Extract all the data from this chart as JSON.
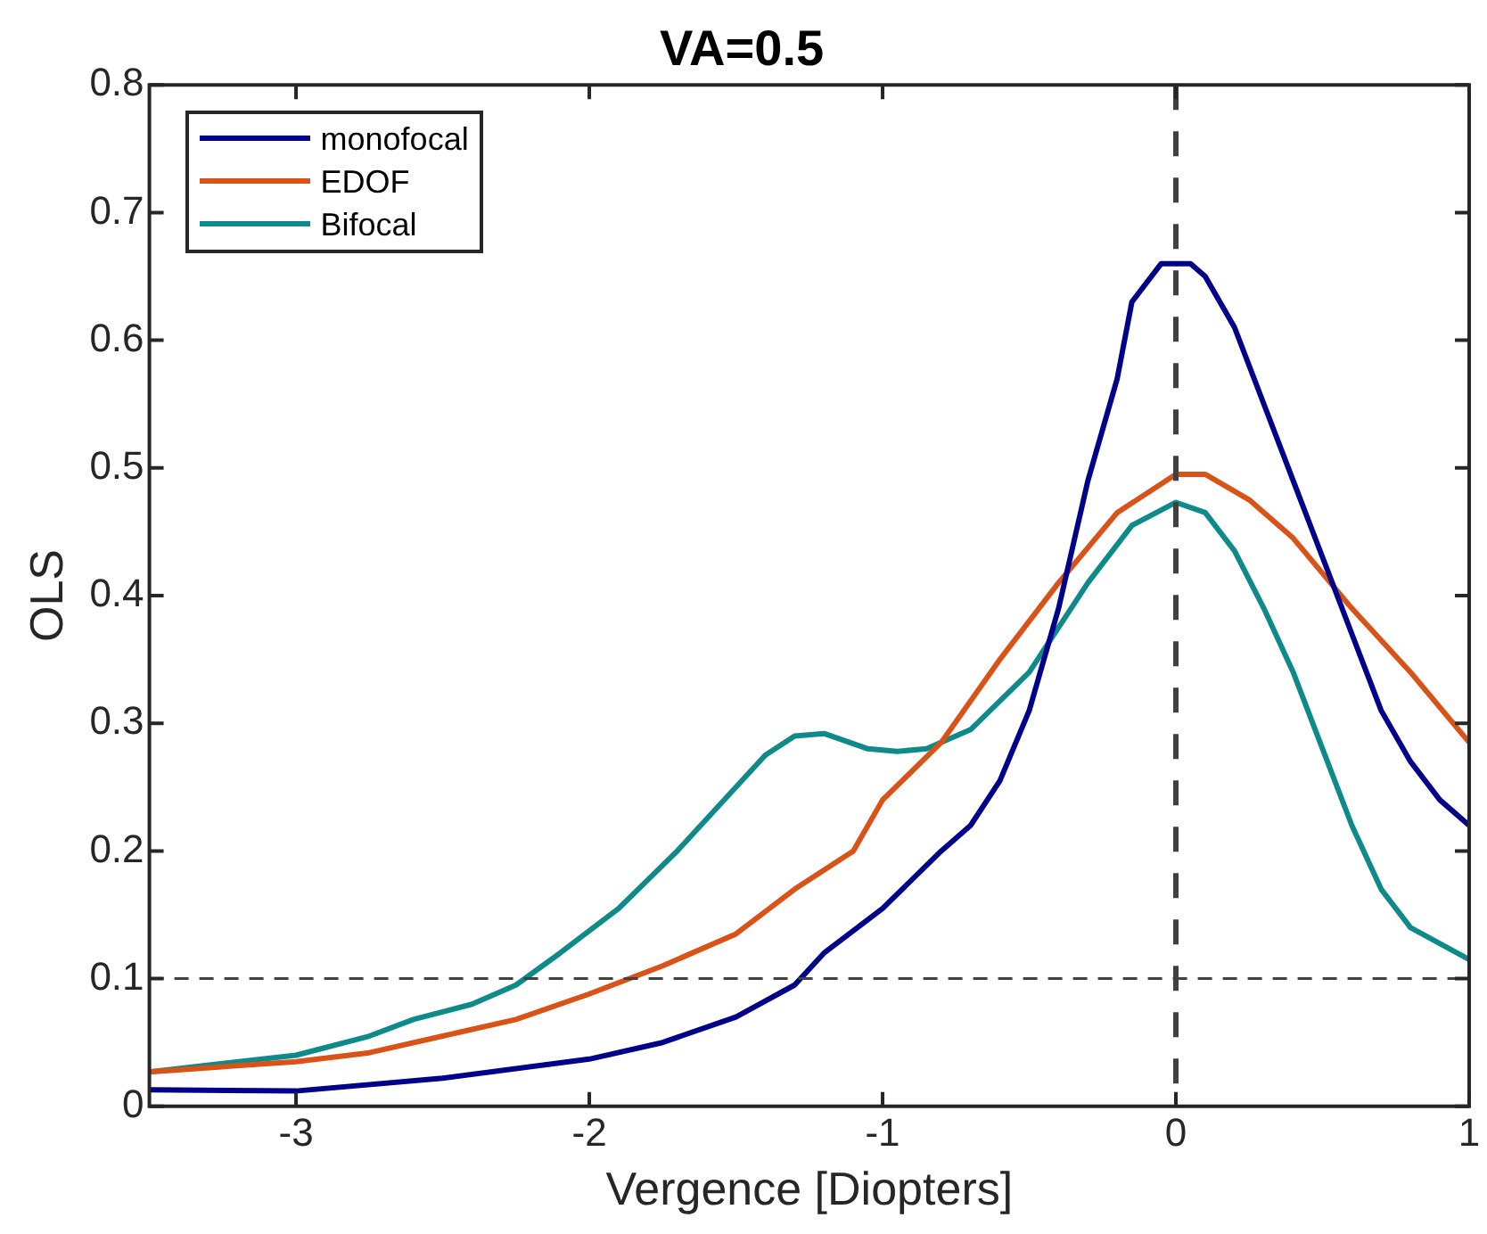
{
  "chart_data": {
    "type": "line",
    "title": "VA=0.5",
    "xlabel": "Vergence [Diopters]",
    "ylabel": "OLS",
    "xlim": [
      -3.5,
      1
    ],
    "xticks": [
      -3,
      -2,
      -1,
      0,
      1
    ],
    "ylim": [
      0,
      0.8
    ],
    "yticks": [
      0,
      0.1,
      0.2,
      0.3,
      0.4,
      0.5,
      0.6,
      0.7,
      0.8
    ],
    "grid": false,
    "legend": "top left",
    "marker": "none",
    "line_style": "solid",
    "ref_lines": [
      {
        "axis": "y",
        "value": 0.1,
        "color": "#404040",
        "line_style": "dashed"
      },
      {
        "axis": "x",
        "value": 0,
        "color": "#404040",
        "line_style": "dashed"
      }
    ],
    "series": [
      {
        "name": "monofocal",
        "color": "#00008b",
        "x": [
          -3.5,
          -3,
          -2.5,
          -2,
          -1.75,
          -1.5,
          -1.3,
          -1.2,
          -1,
          -0.8,
          -0.7,
          -0.6,
          -0.5,
          -0.4,
          -0.3,
          -0.2,
          -0.15,
          -0.05,
          0.05,
          0.1,
          0.2,
          0.3,
          0.4,
          0.5,
          0.6,
          0.7,
          0.8,
          0.9,
          1
        ],
        "values": [
          0.013,
          0.012,
          0.022,
          0.037,
          0.05,
          0.07,
          0.095,
          0.12,
          0.155,
          0.2,
          0.22,
          0.255,
          0.31,
          0.39,
          0.49,
          0.57,
          0.63,
          0.66,
          0.66,
          0.65,
          0.61,
          0.55,
          0.49,
          0.43,
          0.37,
          0.31,
          0.27,
          0.24,
          0.22
        ]
      },
      {
        "name": "EDOF",
        "color": "#d95319",
        "x": [
          -3.5,
          -3,
          -2.75,
          -2.5,
          -2.25,
          -2,
          -1.75,
          -1.5,
          -1.3,
          -1.1,
          -1,
          -0.8,
          -0.6,
          -0.4,
          -0.2,
          0,
          0.1,
          0.25,
          0.4,
          0.6,
          0.8,
          1
        ],
        "values": [
          0.027,
          0.035,
          0.042,
          0.055,
          0.068,
          0.088,
          0.11,
          0.135,
          0.17,
          0.2,
          0.24,
          0.285,
          0.35,
          0.41,
          0.465,
          0.495,
          0.495,
          0.475,
          0.445,
          0.39,
          0.34,
          0.285
        ]
      },
      {
        "name": "Bifocal",
        "color": "#0e8a8a",
        "x": [
          -3.5,
          -3,
          -2.75,
          -2.6,
          -2.4,
          -2.25,
          -2.1,
          -1.9,
          -1.7,
          -1.5,
          -1.4,
          -1.3,
          -1.2,
          -1.05,
          -0.95,
          -0.85,
          -0.7,
          -0.5,
          -0.3,
          -0.15,
          0,
          0.1,
          0.2,
          0.3,
          0.4,
          0.5,
          0.6,
          0.7,
          0.8,
          1
        ],
        "values": [
          0.027,
          0.04,
          0.055,
          0.068,
          0.08,
          0.095,
          0.12,
          0.155,
          0.2,
          0.25,
          0.275,
          0.29,
          0.292,
          0.28,
          0.278,
          0.28,
          0.295,
          0.34,
          0.41,
          0.455,
          0.473,
          0.465,
          0.435,
          0.39,
          0.34,
          0.28,
          0.22,
          0.17,
          0.14,
          0.115
        ]
      }
    ]
  }
}
